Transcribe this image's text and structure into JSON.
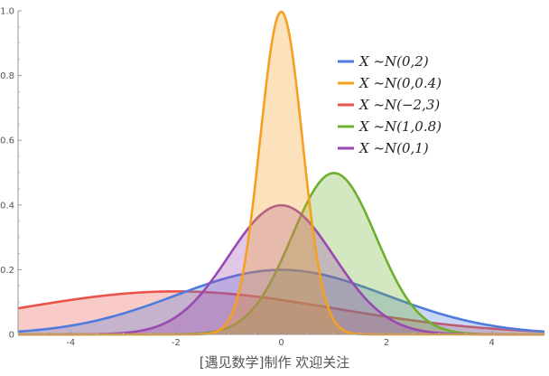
{
  "chart_data": {
    "type": "area",
    "xlim": [
      -5,
      5
    ],
    "ylim": [
      0,
      1.0
    ],
    "x_ticks": [
      "-4",
      "-2",
      "0",
      "2",
      "4"
    ],
    "y_ticks": [
      "0",
      "0.2",
      "0.4",
      "0.6",
      "0.8",
      "1.0"
    ],
    "grid": false,
    "legend_position": "top-right",
    "series": [
      {
        "name": "X ~N(0,2)",
        "mu": 0,
        "sigma": 2,
        "color": "#4f7bdc"
      },
      {
        "name": "X ~N(0,0.4)",
        "mu": 0,
        "sigma": 0.4,
        "color": "#f5a020"
      },
      {
        "name": "X ~N(−2,3)",
        "mu": -2,
        "sigma": 3,
        "color": "#e8544a"
      },
      {
        "name": "X ~N(1,0.8)",
        "mu": 1,
        "sigma": 0.8,
        "color": "#6db02e"
      },
      {
        "name": "X ~N(0,1)",
        "mu": 0,
        "sigma": 1,
        "color": "#9a49b0"
      }
    ],
    "draw_order": [
      2,
      0,
      3,
      4,
      1
    ],
    "caption": "[遇见数学]制作     欢迎关注"
  }
}
